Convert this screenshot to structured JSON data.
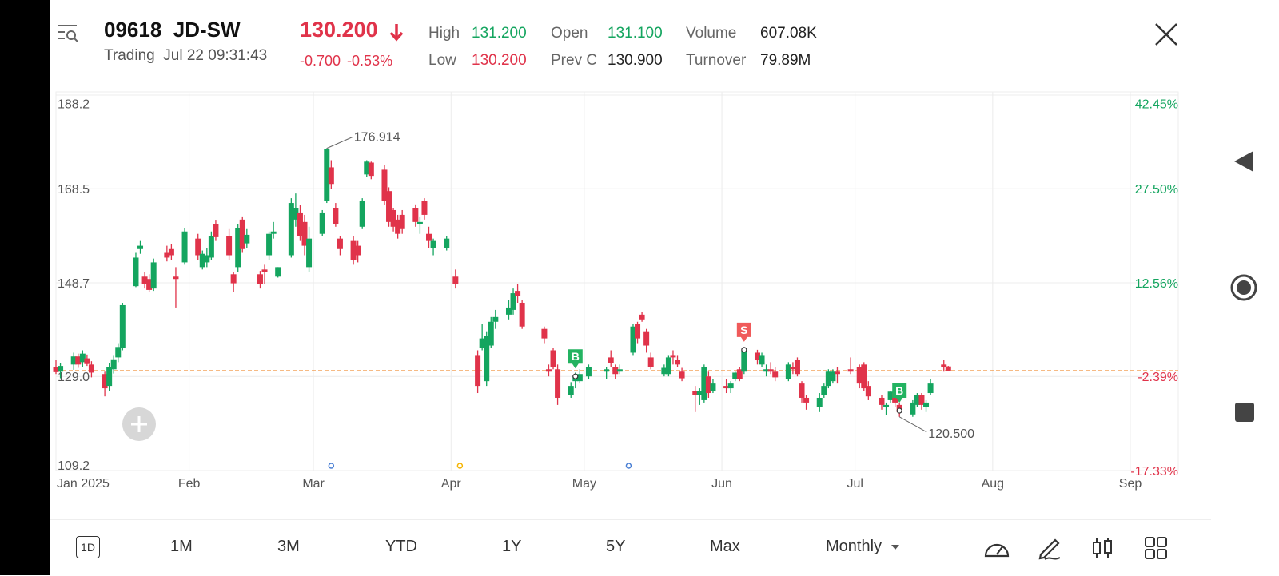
{
  "header": {
    "code": "09618",
    "name": "JD-SW",
    "status": "Trading",
    "datetime": "Jul 22 09:31:43",
    "price": "130.200",
    "change": "-0.700",
    "change_pct": "-0.53%",
    "high_label": "High",
    "high": "131.200",
    "low_label": "Low",
    "low": "130.200",
    "open_label": "Open",
    "open": "131.100",
    "prevc_label": "Prev C",
    "prevc": "130.900",
    "volume_label": "Volume",
    "volume": "607.08K",
    "turnover_label": "Turnover",
    "turnover": "79.89M"
  },
  "colors": {
    "up": "#14a55f",
    "down": "#e0334a",
    "guide": "#f0903a",
    "grid": "#ececec"
  },
  "chart_data": {
    "type": "candlestick",
    "title": "",
    "ylim": [
      109.2,
      188.2
    ],
    "yticks": [
      "188.2",
      "168.5",
      "148.7",
      "129.0",
      "109.2"
    ],
    "pct_ticks": [
      "42.45%",
      "27.50%",
      "12.56%",
      "-2.39%",
      "-17.33%"
    ],
    "xticks": [
      "Jan 2025",
      "Feb",
      "Mar",
      "Apr",
      "May",
      "Jun",
      "Jul",
      "Aug",
      "Sep"
    ],
    "x_range": [
      "2025-01-02",
      "2025-09-01"
    ],
    "current_price": 130.2,
    "annotations": {
      "max_value": "176.914",
      "min_value": "120.500",
      "signals": [
        {
          "label": "B",
          "date": "2025-04-29",
          "price": 129.0
        },
        {
          "label": "S",
          "date": "2025-06-06",
          "price": 134.6
        },
        {
          "label": "B",
          "date": "2025-07-11",
          "price": 121.8
        }
      ]
    },
    "candles": [
      {
        "date": "2025-01-02",
        "o": 131.0,
        "h": 132.5,
        "l": 129.5,
        "c": 129.9
      },
      {
        "date": "2025-01-03",
        "o": 130.0,
        "h": 131.8,
        "l": 128.6,
        "c": 131.2
      },
      {
        "date": "2025-01-06",
        "o": 131.5,
        "h": 134.0,
        "l": 130.4,
        "c": 133.2
      },
      {
        "date": "2025-01-07",
        "o": 133.2,
        "h": 133.8,
        "l": 130.8,
        "c": 131.5
      },
      {
        "date": "2025-01-08",
        "o": 132.0,
        "h": 134.5,
        "l": 131.0,
        "c": 133.8
      },
      {
        "date": "2025-01-09",
        "o": 132.8,
        "h": 133.6,
        "l": 131.2,
        "c": 131.6
      },
      {
        "date": "2025-01-10",
        "o": 131.5,
        "h": 132.2,
        "l": 128.8,
        "c": 129.8
      },
      {
        "date": "2025-01-13",
        "o": 129.5,
        "h": 130.0,
        "l": 124.8,
        "c": 126.5
      },
      {
        "date": "2025-01-14",
        "o": 127.0,
        "h": 131.8,
        "l": 126.0,
        "c": 131.0
      },
      {
        "date": "2025-01-15",
        "o": 130.5,
        "h": 133.5,
        "l": 129.6,
        "c": 132.6
      },
      {
        "date": "2025-01-16",
        "o": 133.0,
        "h": 136.0,
        "l": 132.0,
        "c": 135.2
      },
      {
        "date": "2025-01-17",
        "o": 135.0,
        "h": 144.5,
        "l": 134.5,
        "c": 144.0
      },
      {
        "date": "2025-01-20",
        "o": 148.0,
        "h": 155.0,
        "l": 147.8,
        "c": 154.0
      },
      {
        "date": "2025-01-21",
        "o": 155.8,
        "h": 157.5,
        "l": 154.8,
        "c": 156.5
      },
      {
        "date": "2025-01-22",
        "o": 150.0,
        "h": 151.0,
        "l": 147.5,
        "c": 148.5
      },
      {
        "date": "2025-01-23",
        "o": 149.5,
        "h": 150.5,
        "l": 146.8,
        "c": 147.2
      },
      {
        "date": "2025-01-24",
        "o": 147.5,
        "h": 153.8,
        "l": 147.0,
        "c": 153.0
      },
      {
        "date": "2025-01-27",
        "o": 155.0,
        "h": 156.5,
        "l": 153.2,
        "c": 154.0
      },
      {
        "date": "2025-01-28",
        "o": 155.8,
        "h": 156.8,
        "l": 153.5,
        "c": 154.5
      },
      {
        "date": "2025-01-29",
        "o": 150.0,
        "h": 152.0,
        "l": 143.5,
        "c": 149.5
      },
      {
        "date": "2025-01-31",
        "o": 153.0,
        "h": 160.2,
        "l": 152.5,
        "c": 159.5
      },
      {
        "date": "2025-02-03",
        "o": 158.0,
        "h": 159.0,
        "l": 153.5,
        "c": 154.5
      },
      {
        "date": "2025-02-04",
        "o": 152.0,
        "h": 155.5,
        "l": 151.5,
        "c": 154.8
      },
      {
        "date": "2025-02-05",
        "o": 153.0,
        "h": 156.0,
        "l": 152.0,
        "c": 154.5
      },
      {
        "date": "2025-02-06",
        "o": 154.0,
        "h": 159.5,
        "l": 153.5,
        "c": 158.6
      },
      {
        "date": "2025-02-07",
        "o": 161.0,
        "h": 161.8,
        "l": 157.5,
        "c": 158.3
      },
      {
        "date": "2025-02-10",
        "o": 158.5,
        "h": 160.0,
        "l": 153.5,
        "c": 154.5
      },
      {
        "date": "2025-02-11",
        "o": 150.5,
        "h": 151.0,
        "l": 146.8,
        "c": 148.6
      },
      {
        "date": "2025-02-12",
        "o": 152.0,
        "h": 161.0,
        "l": 151.0,
        "c": 160.2
      },
      {
        "date": "2025-02-13",
        "o": 162.0,
        "h": 162.5,
        "l": 155.0,
        "c": 155.8
      },
      {
        "date": "2025-02-14",
        "o": 157.0,
        "h": 160.0,
        "l": 156.0,
        "c": 158.8
      },
      {
        "date": "2025-02-17",
        "o": 150.5,
        "h": 151.2,
        "l": 147.5,
        "c": 148.5
      },
      {
        "date": "2025-02-18",
        "o": 151.5,
        "h": 152.5,
        "l": 148.5,
        "c": 151.0
      },
      {
        "date": "2025-02-19",
        "o": 154.5,
        "h": 159.5,
        "l": 153.5,
        "c": 159.0
      },
      {
        "date": "2025-02-20",
        "o": 159.0,
        "h": 161.5,
        "l": 158.0,
        "c": 159.5
      },
      {
        "date": "2025-02-21",
        "o": 150.0,
        "h": 152.0,
        "l": 149.8,
        "c": 152.0
      },
      {
        "date": "2025-02-24",
        "o": 154.5,
        "h": 166.5,
        "l": 154.0,
        "c": 165.5
      },
      {
        "date": "2025-02-25",
        "o": 162.0,
        "h": 167.5,
        "l": 160.5,
        "c": 164.5
      },
      {
        "date": "2025-02-26",
        "o": 163.5,
        "h": 165.0,
        "l": 157.5,
        "c": 158.5
      },
      {
        "date": "2025-02-27",
        "o": 161.5,
        "h": 163.0,
        "l": 154.5,
        "c": 156.5
      },
      {
        "date": "2025-02-28",
        "o": 152.0,
        "h": 160.5,
        "l": 151.0,
        "c": 158.0
      },
      {
        "date": "2025-03-03",
        "o": 159.0,
        "h": 164.0,
        "l": 158.5,
        "c": 163.5
      },
      {
        "date": "2025-03-04",
        "o": 166.0,
        "h": 177.0,
        "l": 165.5,
        "c": 176.9
      },
      {
        "date": "2025-03-05",
        "o": 173.0,
        "h": 174.5,
        "l": 168.5,
        "c": 169.5
      },
      {
        "date": "2025-03-06",
        "o": 164.5,
        "h": 165.5,
        "l": 160.5,
        "c": 161.0
      },
      {
        "date": "2025-03-07",
        "o": 158.0,
        "h": 158.6,
        "l": 154.5,
        "c": 155.8
      },
      {
        "date": "2025-03-10",
        "o": 157.5,
        "h": 158.5,
        "l": 152.5,
        "c": 153.5
      },
      {
        "date": "2025-03-11",
        "o": 156.5,
        "h": 157.5,
        "l": 153.0,
        "c": 154.5
      },
      {
        "date": "2025-03-12",
        "o": 160.5,
        "h": 166.5,
        "l": 160.0,
        "c": 166.0
      },
      {
        "date": "2025-03-13",
        "o": 171.5,
        "h": 174.5,
        "l": 171.0,
        "c": 174.2
      },
      {
        "date": "2025-03-14",
        "o": 174.0,
        "h": 174.2,
        "l": 170.5,
        "c": 171.2
      },
      {
        "date": "2025-03-17",
        "o": 172.5,
        "h": 173.5,
        "l": 165.0,
        "c": 166.0
      },
      {
        "date": "2025-03-18",
        "o": 168.0,
        "h": 168.8,
        "l": 160.5,
        "c": 161.5
      },
      {
        "date": "2025-03-19",
        "o": 164.0,
        "h": 164.5,
        "l": 159.5,
        "c": 160.5
      },
      {
        "date": "2025-03-20",
        "o": 162.0,
        "h": 163.0,
        "l": 158.0,
        "c": 159.0
      },
      {
        "date": "2025-03-21",
        "o": 163.0,
        "h": 164.0,
        "l": 159.0,
        "c": 160.0
      },
      {
        "date": "2025-03-24",
        "o": 164.5,
        "h": 165.2,
        "l": 160.5,
        "c": 161.5
      },
      {
        "date": "2025-03-25",
        "o": 161.0,
        "h": 162.5,
        "l": 159.0,
        "c": 161.5
      },
      {
        "date": "2025-03-26",
        "o": 166.0,
        "h": 166.5,
        "l": 162.0,
        "c": 163.0
      },
      {
        "date": "2025-03-27",
        "o": 159.0,
        "h": 160.5,
        "l": 156.0,
        "c": 157.5
      },
      {
        "date": "2025-03-28",
        "o": 156.0,
        "h": 158.0,
        "l": 154.5,
        "c": 157.5
      },
      {
        "date": "2025-03-31",
        "o": 156.0,
        "h": 158.5,
        "l": 155.5,
        "c": 158.0
      },
      {
        "date": "2025-04-02",
        "o": 150.0,
        "h": 151.5,
        "l": 147.5,
        "c": 148.5
      },
      {
        "date": "2025-04-07",
        "o": 133.5,
        "h": 134.5,
        "l": 125.5,
        "c": 127.0
      },
      {
        "date": "2025-04-08",
        "o": 135.0,
        "h": 140.0,
        "l": 134.5,
        "c": 137.0
      },
      {
        "date": "2025-04-09",
        "o": 128.0,
        "h": 138.5,
        "l": 127.0,
        "c": 137.5
      },
      {
        "date": "2025-04-10",
        "o": 135.5,
        "h": 141.5,
        "l": 135.0,
        "c": 140.5
      },
      {
        "date": "2025-04-11",
        "o": 140.5,
        "h": 143.0,
        "l": 139.0,
        "c": 141.5
      },
      {
        "date": "2025-04-14",
        "o": 142.0,
        "h": 145.0,
        "l": 141.0,
        "c": 143.5
      },
      {
        "date": "2025-04-15",
        "o": 143.0,
        "h": 147.5,
        "l": 142.0,
        "c": 146.5
      },
      {
        "date": "2025-04-16",
        "o": 147.0,
        "h": 148.5,
        "l": 144.5,
        "c": 146.0
      },
      {
        "date": "2025-04-17",
        "o": 144.5,
        "h": 145.0,
        "l": 139.0,
        "c": 139.5
      },
      {
        "date": "2025-04-22",
        "o": 139.0,
        "h": 139.5,
        "l": 136.0,
        "c": 137.0
      },
      {
        "date": "2025-04-23",
        "o": 130.5,
        "h": 131.5,
        "l": 129.0,
        "c": 130.0
      },
      {
        "date": "2025-04-24",
        "o": 134.5,
        "h": 135.0,
        "l": 130.5,
        "c": 131.0
      },
      {
        "date": "2025-04-25",
        "o": 130.5,
        "h": 131.5,
        "l": 123.0,
        "c": 124.5
      },
      {
        "date": "2025-04-28",
        "o": 125.0,
        "h": 127.8,
        "l": 124.5,
        "c": 127.0
      },
      {
        "date": "2025-04-29",
        "o": 128.0,
        "h": 129.8,
        "l": 126.5,
        "c": 129.0
      },
      {
        "date": "2025-04-30",
        "o": 128.0,
        "h": 130.5,
        "l": 127.5,
        "c": 129.5
      },
      {
        "date": "2025-05-02",
        "o": 129.0,
        "h": 131.5,
        "l": 128.5,
        "c": 131.0
      },
      {
        "date": "2025-05-06",
        "o": 130.0,
        "h": 131.0,
        "l": 128.5,
        "c": 130.5
      },
      {
        "date": "2025-05-07",
        "o": 133.0,
        "h": 134.5,
        "l": 131.0,
        "c": 131.8
      },
      {
        "date": "2025-05-08",
        "o": 131.0,
        "h": 131.5,
        "l": 128.5,
        "c": 129.5
      },
      {
        "date": "2025-05-09",
        "o": 130.0,
        "h": 131.5,
        "l": 129.5,
        "c": 130.5
      },
      {
        "date": "2025-05-12",
        "o": 134.0,
        "h": 140.0,
        "l": 133.5,
        "c": 139.5
      },
      {
        "date": "2025-05-13",
        "o": 140.0,
        "h": 140.5,
        "l": 136.0,
        "c": 137.0
      },
      {
        "date": "2025-05-14",
        "o": 142.0,
        "h": 142.5,
        "l": 140.5,
        "c": 141.0
      },
      {
        "date": "2025-05-15",
        "o": 138.5,
        "h": 139.0,
        "l": 134.0,
        "c": 135.5
      },
      {
        "date": "2025-05-16",
        "o": 133.0,
        "h": 134.0,
        "l": 130.5,
        "c": 131.0
      },
      {
        "date": "2025-05-19",
        "o": 129.5,
        "h": 131.5,
        "l": 129.0,
        "c": 130.8
      },
      {
        "date": "2025-05-20",
        "o": 129.5,
        "h": 133.5,
        "l": 129.0,
        "c": 133.0
      },
      {
        "date": "2025-05-21",
        "o": 133.5,
        "h": 134.5,
        "l": 131.5,
        "c": 133.0
      },
      {
        "date": "2025-05-22",
        "o": 132.5,
        "h": 133.5,
        "l": 131.0,
        "c": 131.5
      },
      {
        "date": "2025-05-23",
        "o": 130.0,
        "h": 130.8,
        "l": 128.0,
        "c": 128.6
      },
      {
        "date": "2025-05-26",
        "o": 126.0,
        "h": 127.0,
        "l": 121.5,
        "c": 125.0
      },
      {
        "date": "2025-05-27",
        "o": 125.0,
        "h": 126.5,
        "l": 123.0,
        "c": 126.0
      },
      {
        "date": "2025-05-28",
        "o": 124.0,
        "h": 131.5,
        "l": 123.5,
        "c": 131.0
      },
      {
        "date": "2025-05-29",
        "o": 129.0,
        "h": 130.0,
        "l": 124.5,
        "c": 125.5
      },
      {
        "date": "2025-05-30",
        "o": 126.0,
        "h": 128.5,
        "l": 125.5,
        "c": 127.5
      },
      {
        "date": "2025-06-02",
        "o": 127.0,
        "h": 128.5,
        "l": 125.5,
        "c": 126.5
      },
      {
        "date": "2025-06-03",
        "o": 126.5,
        "h": 128.0,
        "l": 125.5,
        "c": 127.5
      },
      {
        "date": "2025-06-04",
        "o": 128.5,
        "h": 130.0,
        "l": 128.0,
        "c": 129.8
      },
      {
        "date": "2025-06-05",
        "o": 130.5,
        "h": 131.0,
        "l": 128.0,
        "c": 128.5
      },
      {
        "date": "2025-06-06",
        "o": 130.0,
        "h": 134.8,
        "l": 129.5,
        "c": 134.5
      },
      {
        "date": "2025-06-09",
        "o": 134.0,
        "h": 134.6,
        "l": 131.5,
        "c": 132.5
      },
      {
        "date": "2025-06-10",
        "o": 131.5,
        "h": 134.0,
        "l": 131.0,
        "c": 133.5
      },
      {
        "date": "2025-06-11",
        "o": 130.0,
        "h": 131.5,
        "l": 129.0,
        "c": 130.5
      },
      {
        "date": "2025-06-12",
        "o": 130.5,
        "h": 132.0,
        "l": 129.5,
        "c": 130.0
      },
      {
        "date": "2025-06-13",
        "o": 130.0,
        "h": 131.0,
        "l": 128.0,
        "c": 128.8
      },
      {
        "date": "2025-06-16",
        "o": 128.5,
        "h": 132.0,
        "l": 128.0,
        "c": 131.5
      },
      {
        "date": "2025-06-17",
        "o": 131.0,
        "h": 132.0,
        "l": 129.5,
        "c": 130.5
      },
      {
        "date": "2025-06-18",
        "o": 132.5,
        "h": 133.0,
        "l": 129.0,
        "c": 129.5
      },
      {
        "date": "2025-06-19",
        "o": 127.5,
        "h": 128.0,
        "l": 123.5,
        "c": 124.5
      },
      {
        "date": "2025-06-20",
        "o": 124.5,
        "h": 125.0,
        "l": 122.0,
        "c": 123.5
      },
      {
        "date": "2025-06-23",
        "o": 122.5,
        "h": 125.5,
        "l": 121.5,
        "c": 124.5
      },
      {
        "date": "2025-06-24",
        "o": 125.0,
        "h": 127.5,
        "l": 124.5,
        "c": 127.0
      },
      {
        "date": "2025-06-25",
        "o": 127.0,
        "h": 130.5,
        "l": 126.5,
        "c": 130.0
      },
      {
        "date": "2025-06-26",
        "o": 128.0,
        "h": 130.5,
        "l": 127.5,
        "c": 130.0
      },
      {
        "date": "2025-06-27",
        "o": 130.0,
        "h": 131.0,
        "l": 127.5,
        "c": 129.5
      },
      {
        "date": "2025-06-30",
        "o": 130.5,
        "h": 133.0,
        "l": 129.5,
        "c": 130.0
      },
      {
        "date": "2025-07-02",
        "o": 131.0,
        "h": 131.5,
        "l": 126.5,
        "c": 127.5
      },
      {
        "date": "2025-07-03",
        "o": 131.5,
        "h": 132.0,
        "l": 126.0,
        "c": 126.5
      },
      {
        "date": "2025-07-04",
        "o": 127.0,
        "h": 128.0,
        "l": 124.0,
        "c": 124.8
      },
      {
        "date": "2025-07-07",
        "o": 124.5,
        "h": 125.0,
        "l": 122.0,
        "c": 123.0
      },
      {
        "date": "2025-07-08",
        "o": 122.5,
        "h": 123.5,
        "l": 120.8,
        "c": 123.0
      },
      {
        "date": "2025-07-09",
        "o": 124.0,
        "h": 126.0,
        "l": 123.5,
        "c": 125.8
      },
      {
        "date": "2025-07-10",
        "o": 125.5,
        "h": 126.0,
        "l": 122.5,
        "c": 123.5
      },
      {
        "date": "2025-07-11",
        "o": 123.0,
        "h": 123.5,
        "l": 120.5,
        "c": 121.5
      },
      {
        "date": "2025-07-14",
        "o": 121.0,
        "h": 124.0,
        "l": 120.5,
        "c": 123.5
      },
      {
        "date": "2025-07-15",
        "o": 123.0,
        "h": 125.5,
        "l": 122.5,
        "c": 125.0
      },
      {
        "date": "2025-07-16",
        "o": 125.0,
        "h": 125.5,
        "l": 122.0,
        "c": 123.0
      },
      {
        "date": "2025-07-17",
        "o": 122.5,
        "h": 124.0,
        "l": 121.5,
        "c": 123.5
      },
      {
        "date": "2025-07-18",
        "o": 125.5,
        "h": 128.5,
        "l": 125.0,
        "c": 127.5
      },
      {
        "date": "2025-07-21",
        "o": 131.5,
        "h": 132.5,
        "l": 130.0,
        "c": 130.9
      },
      {
        "date": "2025-07-22",
        "o": 131.1,
        "h": 131.2,
        "l": 130.2,
        "c": 130.2
      }
    ],
    "event_dots": [
      {
        "date": "2025-03-05",
        "color": "#4a7fd4"
      },
      {
        "date": "2025-04-03",
        "color": "#f5b400"
      },
      {
        "date": "2025-05-11",
        "color": "#4a7fd4"
      }
    ]
  },
  "bottom": {
    "tf_1d": "1D",
    "tf_1m": "1M",
    "tf_3m": "3M",
    "tf_ytd": "YTD",
    "tf_1y": "1Y",
    "tf_5y": "5Y",
    "tf_max": "Max",
    "period": "Monthly"
  },
  "icons": {
    "menu": "search-list-icon",
    "close": "close-icon",
    "plus": "plus-icon",
    "speedometer": "speedometer-icon",
    "draw": "pen-icon",
    "candles": "candlestick-icon",
    "grid": "grid-icon",
    "back": "back-triangle-icon",
    "home": "home-circle-icon",
    "recent": "square-icon"
  }
}
